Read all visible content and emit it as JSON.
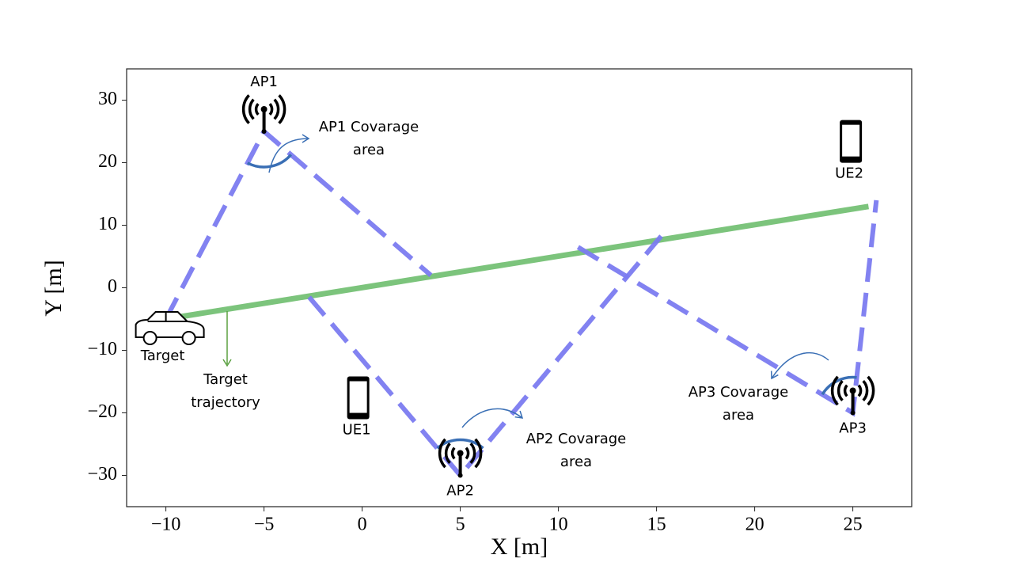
{
  "chart_data": {
    "type": "line",
    "xlabel": "X [m]",
    "ylabel": "Y [m]",
    "xlim": [
      -12,
      28
    ],
    "ylim": [
      -35,
      35
    ],
    "xticks": [
      {
        "value": -10,
        "label": "−10"
      },
      {
        "value": -5,
        "label": "−5"
      },
      0,
      5,
      10,
      15,
      20,
      25
    ],
    "yticks": [
      {
        "value": -30,
        "label": "−30"
      },
      {
        "value": -20,
        "label": "−20"
      },
      {
        "value": -10,
        "label": "−10"
      },
      0,
      10,
      20,
      30
    ],
    "series": [
      {
        "color": "#7cc47c",
        "style": "solid",
        "x": [
          -10,
          25.8
        ],
        "y": [
          -5,
          13
        ]
      },
      {
        "color": "#7b7bf0",
        "style": "dashed",
        "x": [
          -10,
          -5,
          3.5
        ],
        "y": [
          -5,
          25,
          2
        ]
      },
      {
        "color": "#7b7bf0",
        "style": "dashed",
        "x": [
          -2.7,
          5,
          15.3
        ],
        "y": [
          -1.5,
          -30,
          8.5
        ]
      },
      {
        "color": "#7b7bf0",
        "style": "dashed",
        "x": [
          11,
          25,
          26.2
        ],
        "y": [
          6.5,
          -20,
          14
        ]
      }
    ],
    "nodes": [
      {
        "label": "AP1",
        "kind": "ap",
        "x": -5,
        "y": 25
      },
      {
        "label": "AP2",
        "kind": "ap",
        "x": 5,
        "y": -30
      },
      {
        "label": "AP3",
        "kind": "ap",
        "x": 25,
        "y": -20
      },
      {
        "label": "UE1",
        "kind": "phone",
        "x": -0.2,
        "y": -17.6
      },
      {
        "label": "UE2",
        "kind": "phone",
        "x": 24.9,
        "y": 23.4
      },
      {
        "label": "Target",
        "kind": "car",
        "x": -10,
        "y": -5
      }
    ],
    "annotations": [
      {
        "lines": [
          "Target",
          "trajectory"
        ]
      },
      {
        "lines": [
          "AP1 Covarage",
          "area"
        ]
      },
      {
        "lines": [
          "AP2 Covarage",
          "area"
        ]
      },
      {
        "lines": [
          "AP3 Covarage",
          "area"
        ]
      }
    ]
  }
}
